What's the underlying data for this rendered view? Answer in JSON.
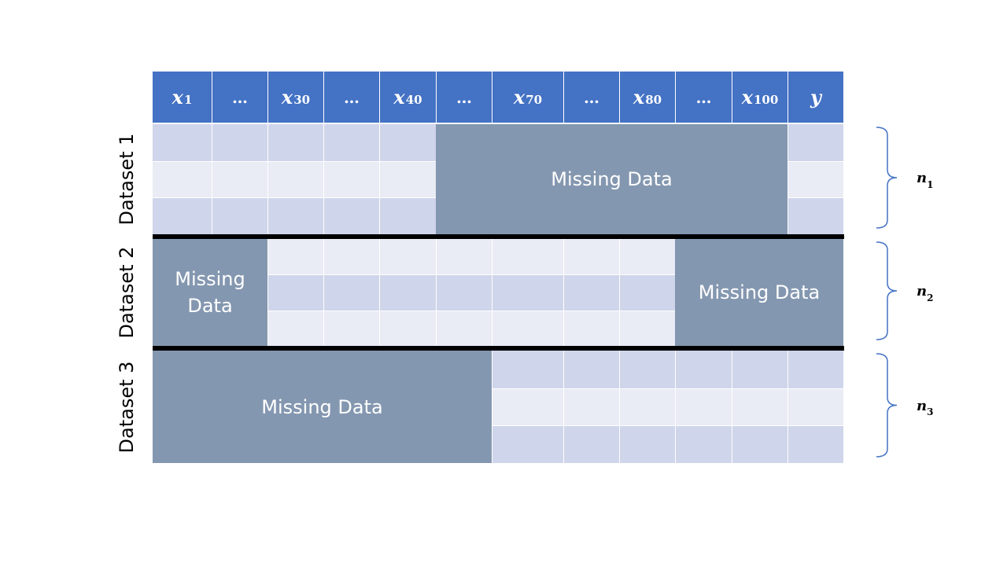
{
  "columns": [
    {
      "var": "x",
      "sub": "1"
    },
    {
      "var": "…",
      "sub": ""
    },
    {
      "var": "x",
      "sub": "30"
    },
    {
      "var": "…",
      "sub": ""
    },
    {
      "var": "x",
      "sub": "40"
    },
    {
      "var": "…",
      "sub": ""
    },
    {
      "var": "x",
      "sub": "70"
    },
    {
      "var": "…",
      "sub": ""
    },
    {
      "var": "x",
      "sub": "80"
    },
    {
      "var": "…",
      "sub": ""
    },
    {
      "var": "x",
      "sub": "100"
    },
    {
      "var": "y",
      "sub": ""
    }
  ],
  "datasets": [
    {
      "label": "Dataset 1",
      "n_label": "n",
      "n_sub": "1",
      "missing": [
        {
          "text": "Missing Data",
          "from_col": 5,
          "to_col": 10
        }
      ]
    },
    {
      "label": "Dataset 2",
      "n_label": "n",
      "n_sub": "2",
      "missing": [
        {
          "text": "Missing\nData",
          "from_col": 0,
          "to_col": 1
        },
        {
          "text": "Missing Data",
          "from_col": 9,
          "to_col": 11
        }
      ]
    },
    {
      "label": "Dataset 3",
      "n_label": "n",
      "n_sub": "3",
      "missing": [
        {
          "text": "Missing Data",
          "from_col": 0,
          "to_col": 5
        }
      ]
    }
  ],
  "rows_per_dataset": 3,
  "colors": {
    "header": "#4472c4",
    "missing": "#8497b0",
    "cell_dark": "#cfd5ea",
    "cell_light": "#e9ebf5",
    "brace": "#4472c4"
  }
}
